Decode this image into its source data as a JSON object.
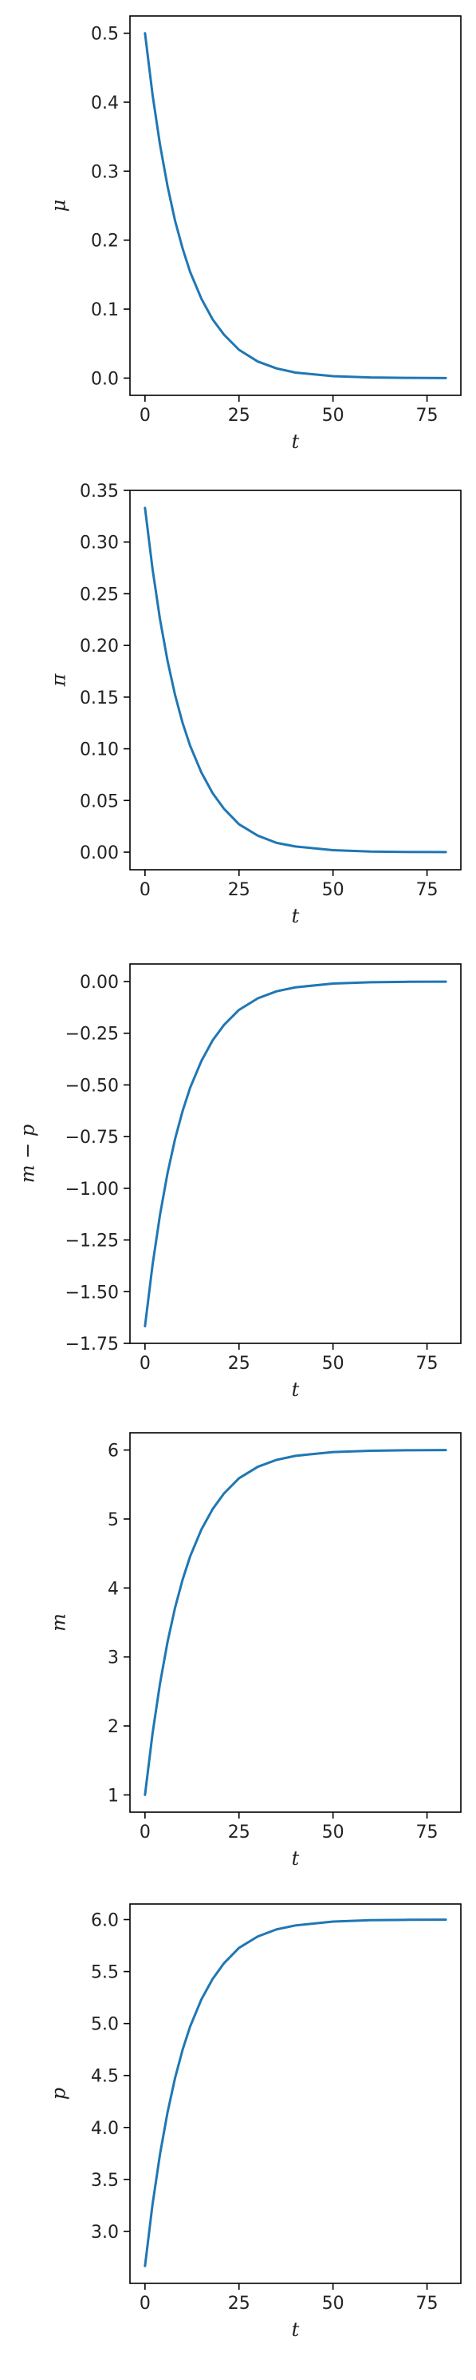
{
  "chart_data": [
    {
      "type": "line",
      "xlabel": "t",
      "ylabel": "μ",
      "xlim": [
        -4,
        84
      ],
      "ylim": [
        -0.025,
        0.525
      ],
      "xticks": [
        0,
        25,
        50,
        75
      ],
      "yticks": [
        0.0,
        0.1,
        0.2,
        0.3,
        0.4,
        0.5
      ],
      "ytick_labels": [
        "0.0",
        "0.1",
        "0.2",
        "0.3",
        "0.4",
        "0.5"
      ],
      "grid": false,
      "series": [
        {
          "color": "#1f77b4",
          "x": [
            0,
            2,
            4,
            6,
            8,
            10,
            12,
            15,
            18,
            21,
            25,
            30,
            35,
            40,
            50,
            60,
            70,
            80
          ],
          "y": [
            0.5,
            0.411,
            0.338,
            0.278,
            0.228,
            0.188,
            0.154,
            0.115,
            0.085,
            0.063,
            0.041,
            0.024,
            0.014,
            0.008,
            0.0028,
            0.0009,
            0.0003,
            0.0001
          ]
        }
      ]
    },
    {
      "type": "line",
      "xlabel": "t",
      "ylabel": "π",
      "xlim": [
        -4,
        84
      ],
      "ylim": [
        -0.017,
        0.35
      ],
      "xticks": [
        0,
        25,
        50,
        75
      ],
      "yticks": [
        0.0,
        0.05,
        0.1,
        0.15,
        0.2,
        0.25,
        0.3,
        0.35
      ],
      "ytick_labels": [
        "0.00",
        "0.05",
        "0.10",
        "0.15",
        "0.20",
        "0.25",
        "0.30",
        "0.35"
      ],
      "grid": false,
      "series": [
        {
          "color": "#1f77b4",
          "x": [
            0,
            2,
            4,
            6,
            8,
            10,
            12,
            15,
            18,
            21,
            25,
            30,
            35,
            40,
            50,
            60,
            70,
            80
          ],
          "y": [
            0.333,
            0.274,
            0.225,
            0.185,
            0.152,
            0.125,
            0.103,
            0.077,
            0.057,
            0.042,
            0.027,
            0.016,
            0.009,
            0.0055,
            0.0019,
            0.0006,
            0.0002,
            0.0001
          ]
        }
      ]
    },
    {
      "type": "line",
      "xlabel": "t",
      "ylabel": "m − p",
      "xlim": [
        -4,
        84
      ],
      "ylim": [
        -1.75,
        0.085
      ],
      "xticks": [
        0,
        25,
        50,
        75
      ],
      "yticks": [
        0.0,
        -0.25,
        -0.5,
        -0.75,
        -1.0,
        -1.25,
        -1.5,
        -1.75
      ],
      "ytick_labels": [
        "0.00",
        "−0.25",
        "−0.50",
        "−0.75",
        "−1.00",
        "−1.25",
        "−1.50",
        "−1.75"
      ],
      "grid": false,
      "series": [
        {
          "color": "#1f77b4",
          "x": [
            0,
            2,
            4,
            6,
            8,
            10,
            12,
            15,
            18,
            21,
            25,
            30,
            35,
            40,
            50,
            60,
            70,
            80
          ],
          "y": [
            -1.667,
            -1.371,
            -1.127,
            -0.926,
            -0.761,
            -0.626,
            -0.514,
            -0.384,
            -0.284,
            -0.21,
            -0.137,
            -0.081,
            -0.047,
            -0.028,
            -0.0095,
            -0.0032,
            -0.0011,
            -0.0004
          ]
        }
      ]
    },
    {
      "type": "line",
      "xlabel": "t",
      "ylabel": "m",
      "xlim": [
        -4,
        84
      ],
      "ylim": [
        0.75,
        6.25
      ],
      "xticks": [
        0,
        25,
        50,
        75
      ],
      "yticks": [
        1,
        2,
        3,
        4,
        5,
        6
      ],
      "ytick_labels": [
        "1",
        "2",
        "3",
        "4",
        "5",
        "6"
      ],
      "grid": false,
      "series": [
        {
          "color": "#1f77b4",
          "x": [
            0,
            2,
            4,
            6,
            8,
            10,
            12,
            15,
            18,
            21,
            25,
            30,
            35,
            40,
            50,
            60,
            70,
            80
          ],
          "y": [
            1.0,
            1.889,
            2.619,
            3.22,
            3.716,
            4.121,
            4.457,
            4.848,
            5.145,
            5.37,
            5.591,
            5.757,
            5.858,
            5.916,
            5.971,
            5.99,
            5.997,
            5.999
          ]
        }
      ]
    },
    {
      "type": "line",
      "xlabel": "t",
      "ylabel": "p",
      "xlim": [
        -4,
        84
      ],
      "ylim": [
        2.5,
        6.15
      ],
      "xticks": [
        0,
        25,
        50,
        75
      ],
      "yticks": [
        3.0,
        3.5,
        4.0,
        4.5,
        5.0,
        5.5,
        6.0
      ],
      "ytick_labels": [
        "3.0",
        "3.5",
        "4.0",
        "4.5",
        "5.0",
        "5.5",
        "6.0"
      ],
      "grid": false,
      "series": [
        {
          "color": "#1f77b4",
          "x": [
            0,
            2,
            4,
            6,
            8,
            10,
            12,
            15,
            18,
            21,
            25,
            30,
            35,
            40,
            50,
            60,
            70,
            80
          ],
          "y": [
            2.667,
            3.26,
            3.746,
            4.146,
            4.477,
            4.748,
            4.971,
            5.232,
            5.43,
            5.58,
            5.728,
            5.838,
            5.906,
            5.944,
            5.981,
            5.994,
            5.998,
            5.999
          ]
        }
      ]
    }
  ]
}
